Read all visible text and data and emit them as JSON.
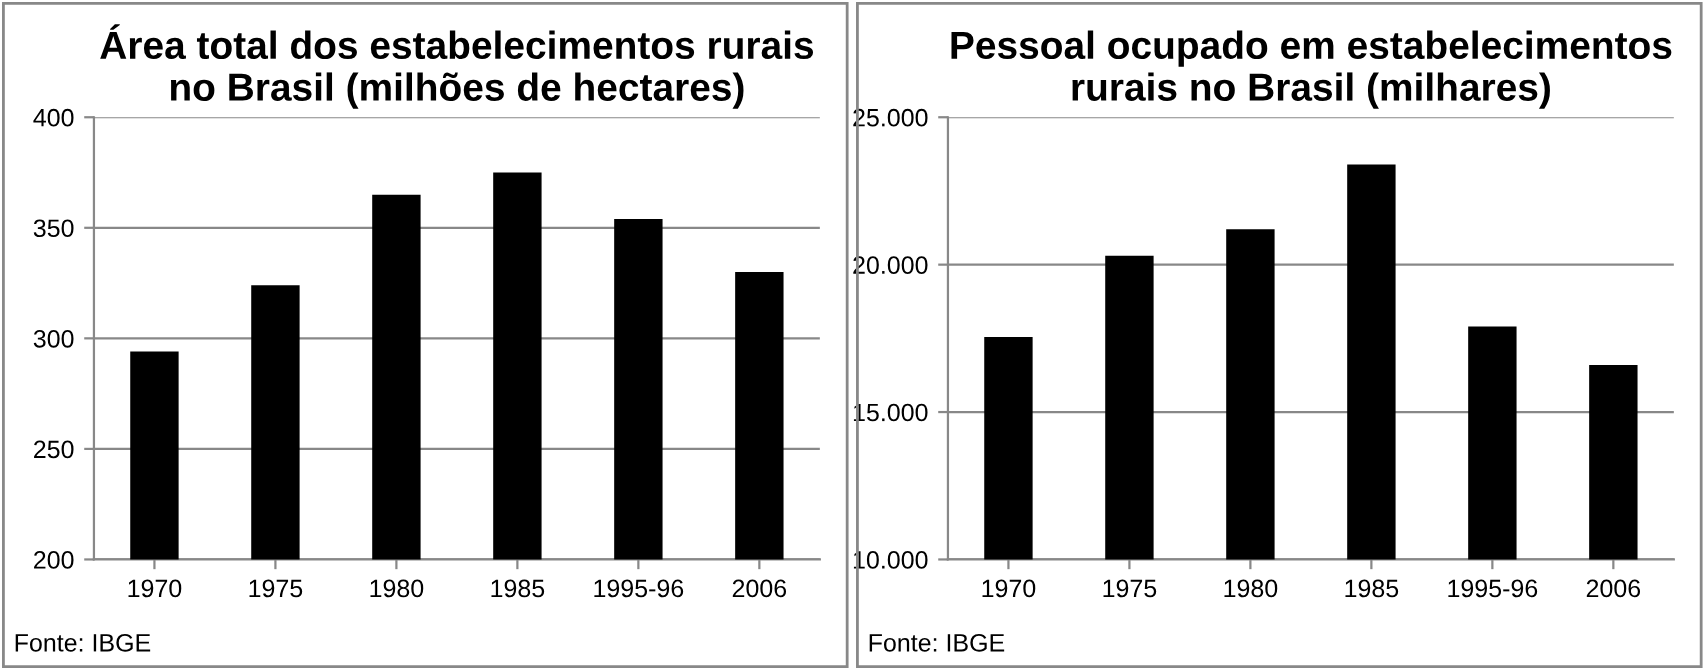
{
  "chart_data": [
    {
      "type": "bar",
      "title": "Área total dos estabelecimentos rurais\nno Brasil (milhões de hectares)",
      "categories": [
        "1970",
        "1975",
        "1980",
        "1985",
        "1995-96",
        "2006"
      ],
      "values": [
        294,
        324,
        365,
        375,
        354,
        330
      ],
      "color": "#000000",
      "ylim": [
        200,
        400
      ],
      "yticks": [
        200,
        250,
        300,
        350,
        400
      ],
      "grid": "y",
      "annotations": [
        "Fonte: IBGE"
      ]
    },
    {
      "type": "bar",
      "title": "Pessoal ocupado em estabelecimentos\nrurais no Brasil (milhares)",
      "categories": [
        "1970",
        "1975",
        "1980",
        "1985",
        "1995-96",
        "2006"
      ],
      "values": [
        17550,
        20300,
        21200,
        23400,
        17900,
        16600
      ],
      "color": "#000000",
      "ylim": [
        10000,
        25000
      ],
      "yticks": [
        {
          "value": 10000,
          "label": "10.000"
        },
        {
          "value": 15000,
          "label": "15.000"
        },
        {
          "value": 20000,
          "label": "20.000"
        },
        {
          "value": 25000,
          "label": "25.000"
        }
      ],
      "grid": "y",
      "annotations": [
        "Fonte: IBGE"
      ]
    }
  ]
}
